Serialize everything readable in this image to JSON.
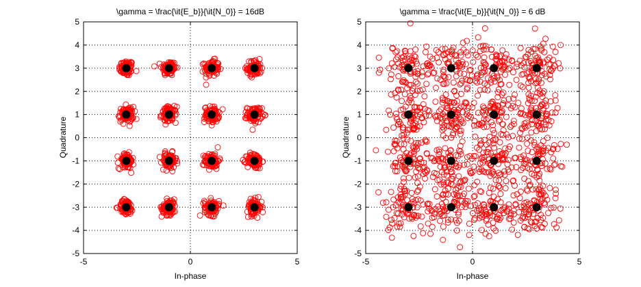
{
  "chart_data": [
    {
      "type": "scatter",
      "title": "\\gamma = \\frac{\\it{E_b}}{\\it{N_0}} = 16dB",
      "xlabel": "In-phase",
      "ylabel": "Quadrature",
      "xlim": [
        -5,
        5
      ],
      "ylim": [
        -5,
        5
      ],
      "xticks": [
        "-5",
        "0",
        "5"
      ],
      "yticks": [
        "-5",
        "-4",
        "-3",
        "-2",
        "-1",
        "0",
        "1",
        "2",
        "3",
        "4",
        "5"
      ],
      "grid": "dotted",
      "constellation_points": [
        [
          -3,
          3
        ],
        [
          -1,
          3
        ],
        [
          1,
          3
        ],
        [
          3,
          3
        ],
        [
          -3,
          1
        ],
        [
          -1,
          1
        ],
        [
          1,
          1
        ],
        [
          3,
          1
        ],
        [
          -3,
          -1
        ],
        [
          -1,
          -1
        ],
        [
          1,
          -1
        ],
        [
          3,
          -1
        ],
        [
          -3,
          -3
        ],
        [
          -1,
          -3
        ],
        [
          1,
          -3
        ],
        [
          3,
          -3
        ]
      ],
      "received_spread": 0.17,
      "samples_per_point": 85
    },
    {
      "type": "scatter",
      "title": "\\gamma = \\frac{\\it{E_b}}{\\it{N_0}} = 6 dB",
      "xlabel": "In-phase",
      "ylabel": "Quadrature",
      "xlim": [
        -5,
        5
      ],
      "ylim": [
        -5,
        5
      ],
      "xticks": [
        "-5",
        "0",
        "5"
      ],
      "yticks": [
        "-5",
        "-4",
        "-3",
        "-2",
        "-1",
        "0",
        "1",
        "2",
        "3",
        "4",
        "5"
      ],
      "grid": "dotted",
      "constellation_points": [
        [
          -3,
          3
        ],
        [
          -1,
          3
        ],
        [
          1,
          3
        ],
        [
          3,
          3
        ],
        [
          -3,
          1
        ],
        [
          -1,
          1
        ],
        [
          1,
          1
        ],
        [
          3,
          1
        ],
        [
          -3,
          -1
        ],
        [
          -1,
          -1
        ],
        [
          1,
          -1
        ],
        [
          3,
          -1
        ],
        [
          -3,
          -3
        ],
        [
          -1,
          -3
        ],
        [
          1,
          -3
        ],
        [
          3,
          -3
        ]
      ],
      "received_spread": 0.55,
      "samples_per_point": 85
    }
  ],
  "colors": {
    "received": "#ff0000",
    "constellation": "#000000",
    "grid": "#000000"
  }
}
